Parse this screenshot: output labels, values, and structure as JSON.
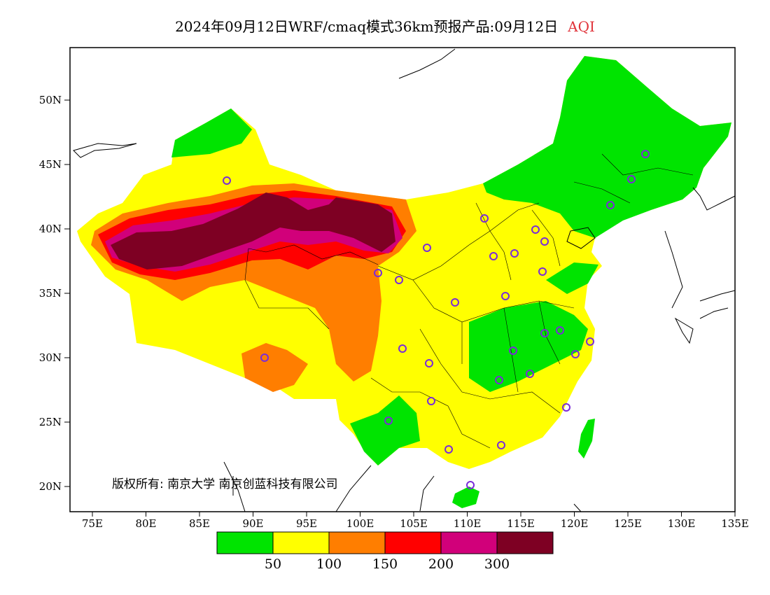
{
  "title": {
    "main": "2024年09月12日WRF/cmaq模式36km预报产品:09月12日",
    "product": "AQI"
  },
  "copyright": "版权所有: 南京大学  南京创蓝科技有限公司",
  "axes": {
    "lat_labels": [
      "50N",
      "45N",
      "40N",
      "35N",
      "30N",
      "25N",
      "20N"
    ],
    "lon_labels": [
      "75E",
      "80E",
      "85E",
      "90E",
      "95E",
      "100E",
      "105E",
      "110E",
      "115E",
      "120E",
      "125E",
      "130E",
      "135E"
    ]
  },
  "legend": {
    "colors": [
      "#00e400",
      "#ffff00",
      "#ff7e00",
      "#ff0000",
      "#d1007a",
      "#7e0023"
    ],
    "labels": [
      "50",
      "100",
      "150",
      "200",
      "300"
    ]
  }
}
